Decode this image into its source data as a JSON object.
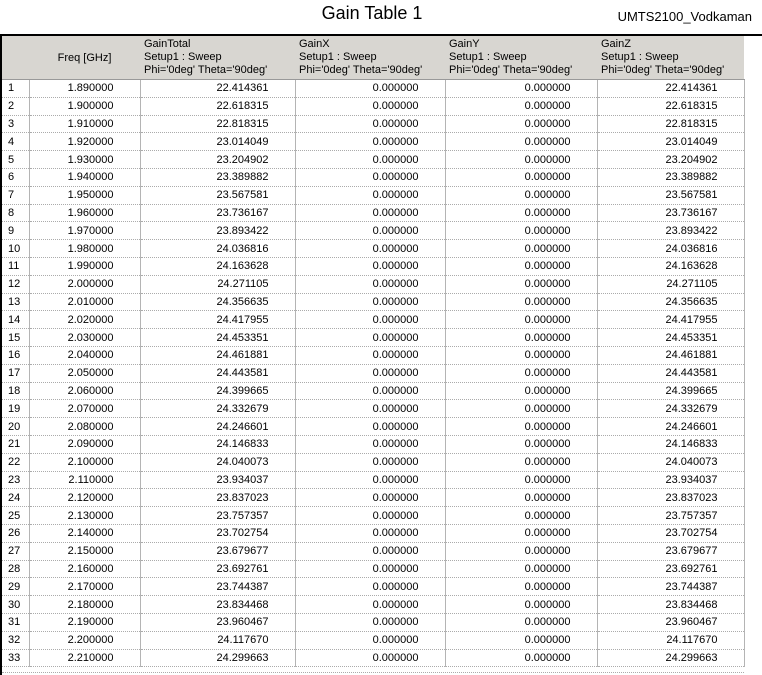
{
  "chart_data": {
    "type": "table",
    "title": "Gain Table 1",
    "annotation": "UMTS2100_Vodkaman",
    "columns": [
      {
        "label": ""
      },
      {
        "label": "Freq [GHz]"
      },
      {
        "label": "GainTotal",
        "setup": "Setup1 : Sweep",
        "variation": "Phi='0deg' Theta='90deg'"
      },
      {
        "label": "GainX",
        "setup": "Setup1 : Sweep",
        "variation": "Phi='0deg' Theta='90deg'"
      },
      {
        "label": "GainY",
        "setup": "Setup1 : Sweep",
        "variation": "Phi='0deg' Theta='90deg'"
      },
      {
        "label": "GainZ",
        "setup": "Setup1 : Sweep",
        "variation": "Phi='0deg' Theta='90deg'"
      }
    ],
    "rows": [
      [
        "1.890000",
        "22.414361",
        "0.000000",
        "0.000000",
        "22.414361"
      ],
      [
        "1.900000",
        "22.618315",
        "0.000000",
        "0.000000",
        "22.618315"
      ],
      [
        "1.910000",
        "22.818315",
        "0.000000",
        "0.000000",
        "22.818315"
      ],
      [
        "1.920000",
        "23.014049",
        "0.000000",
        "0.000000",
        "23.014049"
      ],
      [
        "1.930000",
        "23.204902",
        "0.000000",
        "0.000000",
        "23.204902"
      ],
      [
        "1.940000",
        "23.389882",
        "0.000000",
        "0.000000",
        "23.389882"
      ],
      [
        "1.950000",
        "23.567581",
        "0.000000",
        "0.000000",
        "23.567581"
      ],
      [
        "1.960000",
        "23.736167",
        "0.000000",
        "0.000000",
        "23.736167"
      ],
      [
        "1.970000",
        "23.893422",
        "0.000000",
        "0.000000",
        "23.893422"
      ],
      [
        "1.980000",
        "24.036816",
        "0.000000",
        "0.000000",
        "24.036816"
      ],
      [
        "1.990000",
        "24.163628",
        "0.000000",
        "0.000000",
        "24.163628"
      ],
      [
        "2.000000",
        "24.271105",
        "0.000000",
        "0.000000",
        "24.271105"
      ],
      [
        "2.010000",
        "24.356635",
        "0.000000",
        "0.000000",
        "24.356635"
      ],
      [
        "2.020000",
        "24.417955",
        "0.000000",
        "0.000000",
        "24.417955"
      ],
      [
        "2.030000",
        "24.453351",
        "0.000000",
        "0.000000",
        "24.453351"
      ],
      [
        "2.040000",
        "24.461881",
        "0.000000",
        "0.000000",
        "24.461881"
      ],
      [
        "2.050000",
        "24.443581",
        "0.000000",
        "0.000000",
        "24.443581"
      ],
      [
        "2.060000",
        "24.399665",
        "0.000000",
        "0.000000",
        "24.399665"
      ],
      [
        "2.070000",
        "24.332679",
        "0.000000",
        "0.000000",
        "24.332679"
      ],
      [
        "2.080000",
        "24.246601",
        "0.000000",
        "0.000000",
        "24.246601"
      ],
      [
        "2.090000",
        "24.146833",
        "0.000000",
        "0.000000",
        "24.146833"
      ],
      [
        "2.100000",
        "24.040073",
        "0.000000",
        "0.000000",
        "24.040073"
      ],
      [
        "2.110000",
        "23.934037",
        "0.000000",
        "0.000000",
        "23.934037"
      ],
      [
        "2.120000",
        "23.837023",
        "0.000000",
        "0.000000",
        "23.837023"
      ],
      [
        "2.130000",
        "23.757357",
        "0.000000",
        "0.000000",
        "23.757357"
      ],
      [
        "2.140000",
        "23.702754",
        "0.000000",
        "0.000000",
        "23.702754"
      ],
      [
        "2.150000",
        "23.679677",
        "0.000000",
        "0.000000",
        "23.679677"
      ],
      [
        "2.160000",
        "23.692761",
        "0.000000",
        "0.000000",
        "23.692761"
      ],
      [
        "2.170000",
        "23.744387",
        "0.000000",
        "0.000000",
        "23.744387"
      ],
      [
        "2.180000",
        "23.834468",
        "0.000000",
        "0.000000",
        "23.834468"
      ],
      [
        "2.190000",
        "23.960467",
        "0.000000",
        "0.000000",
        "23.960467"
      ],
      [
        "2.200000",
        "24.117670",
        "0.000000",
        "0.000000",
        "24.117670"
      ],
      [
        "2.210000",
        "24.299663",
        "0.000000",
        "0.000000",
        "24.299663"
      ]
    ]
  }
}
